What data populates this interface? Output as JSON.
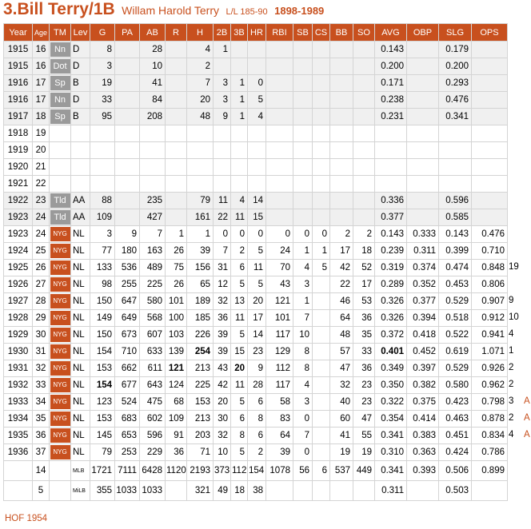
{
  "header": {
    "title": "3.Bill Terry/1B",
    "full_name": "Willam Harold Terry",
    "bats_throws_size": "L/L 185-90",
    "lifespan": "1898-1989"
  },
  "columns": [
    "Year",
    "Age",
    "TM",
    "Lev",
    "G",
    "PA",
    "AB",
    "R",
    "H",
    "2B",
    "3B",
    "HR",
    "RBI",
    "SB",
    "CS",
    "BB",
    "SO",
    "AVG",
    "OBP",
    "SLG",
    "OPS"
  ],
  "rows": [
    {
      "kind": "minor",
      "year": "1915",
      "age": "16",
      "tm": "Nn",
      "lev": "D",
      "g": "8",
      "pa": "",
      "ab": "28",
      "r": "",
      "h": "4",
      "d": "1",
      "t": "",
      "hr": "",
      "rbi": "",
      "sb": "",
      "cs": "",
      "bb": "",
      "so": "",
      "avg": "0.143",
      "obp": "",
      "slg": "0.179",
      "ops": ""
    },
    {
      "kind": "minor",
      "year": "1915",
      "age": "16",
      "tm": "Dot",
      "lev": "D",
      "g": "3",
      "pa": "",
      "ab": "10",
      "r": "",
      "h": "2",
      "d": "",
      "t": "",
      "hr": "",
      "rbi": "",
      "sb": "",
      "cs": "",
      "bb": "",
      "so": "",
      "avg": "0.200",
      "obp": "",
      "slg": "0.200",
      "ops": ""
    },
    {
      "kind": "minor",
      "year": "1916",
      "age": "17",
      "tm": "Sp",
      "lev": "B",
      "g": "19",
      "pa": "",
      "ab": "41",
      "r": "",
      "h": "7",
      "d": "3",
      "t": "1",
      "hr": "0",
      "rbi": "",
      "sb": "",
      "cs": "",
      "bb": "",
      "so": "",
      "avg": "0.171",
      "obp": "",
      "slg": "0.293",
      "ops": ""
    },
    {
      "kind": "minor",
      "year": "1916",
      "age": "17",
      "tm": "Nn",
      "lev": "D",
      "g": "33",
      "pa": "",
      "ab": "84",
      "r": "",
      "h": "20",
      "d": "3",
      "t": "1",
      "hr": "5",
      "rbi": "",
      "sb": "",
      "cs": "",
      "bb": "",
      "so": "",
      "avg": "0.238",
      "obp": "",
      "slg": "0.476",
      "ops": ""
    },
    {
      "kind": "minor",
      "year": "1917",
      "age": "18",
      "tm": "Sp",
      "lev": "B",
      "g": "95",
      "pa": "",
      "ab": "208",
      "r": "",
      "h": "48",
      "d": "9",
      "t": "1",
      "hr": "4",
      "rbi": "",
      "sb": "",
      "cs": "",
      "bb": "",
      "so": "",
      "avg": "0.231",
      "obp": "",
      "slg": "0.341",
      "ops": ""
    },
    {
      "kind": "empty",
      "year": "1918",
      "age": "19"
    },
    {
      "kind": "empty",
      "year": "1919",
      "age": "20"
    },
    {
      "kind": "empty",
      "year": "1920",
      "age": "21"
    },
    {
      "kind": "empty",
      "year": "1921",
      "age": "22"
    },
    {
      "kind": "minor",
      "year": "1922",
      "age": "23",
      "tm": "Tld",
      "lev": "AA",
      "g": "88",
      "pa": "",
      "ab": "235",
      "r": "",
      "h": "79",
      "d": "11",
      "t": "4",
      "hr": "14",
      "rbi": "",
      "sb": "",
      "cs": "",
      "bb": "",
      "so": "",
      "avg": "0.336",
      "obp": "",
      "slg": "0.596",
      "ops": ""
    },
    {
      "kind": "minor",
      "year": "1923",
      "age": "24",
      "tm": "Tld",
      "lev": "AA",
      "g": "109",
      "pa": "",
      "ab": "427",
      "r": "",
      "h": "161",
      "d": "22",
      "t": "11",
      "hr": "15",
      "rbi": "",
      "sb": "",
      "cs": "",
      "bb": "",
      "so": "",
      "avg": "0.377",
      "obp": "",
      "slg": "0.585",
      "ops": ""
    },
    {
      "kind": "major",
      "year": "1923",
      "age": "24",
      "tm": "NYG",
      "lev": "NL",
      "g": "3",
      "pa": "9",
      "ab": "7",
      "r": "1",
      "h": "1",
      "d": "0",
      "t": "0",
      "hr": "0",
      "rbi": "0",
      "sb": "0",
      "cs": "0",
      "bb": "2",
      "so": "2",
      "avg": "0.143",
      "obp": "0.333",
      "slg": "0.143",
      "ops": "0.476"
    },
    {
      "kind": "major",
      "year": "1924",
      "age": "25",
      "tm": "NYG",
      "lev": "NL",
      "g": "77",
      "pa": "180",
      "ab": "163",
      "r": "26",
      "h": "39",
      "d": "7",
      "t": "2",
      "hr": "5",
      "rbi": "24",
      "sb": "1",
      "cs": "1",
      "bb": "17",
      "so": "18",
      "avg": "0.239",
      "obp": "0.311",
      "slg": "0.399",
      "ops": "0.710"
    },
    {
      "kind": "major",
      "year": "1925",
      "age": "26",
      "tm": "NYG",
      "lev": "NL",
      "g": "133",
      "pa": "536",
      "ab": "489",
      "r": "75",
      "h": "156",
      "d": "31",
      "t": "6",
      "hr": "11",
      "rbi": "70",
      "sb": "4",
      "cs": "5",
      "bb": "42",
      "so": "52",
      "avg": "0.319",
      "obp": "0.374",
      "slg": "0.474",
      "ops": "0.848",
      "note": "19"
    },
    {
      "kind": "major",
      "year": "1926",
      "age": "27",
      "tm": "NYG",
      "lev": "NL",
      "g": "98",
      "pa": "255",
      "ab": "225",
      "r": "26",
      "h": "65",
      "d": "12",
      "t": "5",
      "hr": "5",
      "rbi": "43",
      "sb": "3",
      "cs": "",
      "bb": "22",
      "so": "17",
      "avg": "0.289",
      "obp": "0.352",
      "slg": "0.453",
      "ops": "0.806"
    },
    {
      "kind": "major",
      "year": "1927",
      "age": "28",
      "tm": "NYG",
      "lev": "NL",
      "g": "150",
      "pa": "647",
      "ab": "580",
      "r": "101",
      "h": "189",
      "d": "32",
      "t": "13",
      "hr": "20",
      "rbi": "121",
      "sb": "1",
      "cs": "",
      "bb": "46",
      "so": "53",
      "avg": "0.326",
      "obp": "0.377",
      "slg": "0.529",
      "ops": "0.907",
      "note": "9"
    },
    {
      "kind": "major",
      "year": "1928",
      "age": "29",
      "tm": "NYG",
      "lev": "NL",
      "g": "149",
      "pa": "649",
      "ab": "568",
      "r": "100",
      "h": "185",
      "d": "36",
      "t": "11",
      "hr": "17",
      "rbi": "101",
      "sb": "7",
      "cs": "",
      "bb": "64",
      "so": "36",
      "avg": "0.326",
      "obp": "0.394",
      "slg": "0.518",
      "ops": "0.912",
      "note": "10"
    },
    {
      "kind": "major",
      "year": "1929",
      "age": "30",
      "tm": "NYG",
      "lev": "NL",
      "g": "150",
      "pa": "673",
      "ab": "607",
      "r": "103",
      "h": "226",
      "d": "39",
      "t": "5",
      "hr": "14",
      "rbi": "117",
      "sb": "10",
      "cs": "",
      "bb": "48",
      "so": "35",
      "avg": "0.372",
      "obp": "0.418",
      "slg": "0.522",
      "ops": "0.941",
      "note": "4"
    },
    {
      "kind": "major",
      "year": "1930",
      "age": "31",
      "tm": "NYG",
      "lev": "NL",
      "g": "154",
      "pa": "710",
      "ab": "633",
      "r": "139",
      "h": "254",
      "d": "39",
      "t": "15",
      "hr": "23",
      "rbi": "129",
      "sb": "8",
      "cs": "",
      "bb": "57",
      "so": "33",
      "avg": "0.401",
      "obp": "0.452",
      "slg": "0.619",
      "ops": "1.071",
      "note": "1",
      "bold": [
        "h",
        "avg"
      ]
    },
    {
      "kind": "major",
      "year": "1931",
      "age": "32",
      "tm": "NYG",
      "lev": "NL",
      "g": "153",
      "pa": "662",
      "ab": "611",
      "r": "121",
      "h": "213",
      "d": "43",
      "t": "20",
      "hr": "9",
      "rbi": "112",
      "sb": "8",
      "cs": "",
      "bb": "47",
      "so": "36",
      "avg": "0.349",
      "obp": "0.397",
      "slg": "0.529",
      "ops": "0.926",
      "note": "2",
      "bold": [
        "r",
        "t"
      ]
    },
    {
      "kind": "major",
      "year": "1932",
      "age": "33",
      "tm": "NYG",
      "lev": "NL",
      "g": "154",
      "pa": "677",
      "ab": "643",
      "r": "124",
      "h": "225",
      "d": "42",
      "t": "11",
      "hr": "28",
      "rbi": "117",
      "sb": "4",
      "cs": "",
      "bb": "32",
      "so": "23",
      "avg": "0.350",
      "obp": "0.382",
      "slg": "0.580",
      "ops": "0.962",
      "note": "2",
      "bold": [
        "g"
      ]
    },
    {
      "kind": "major",
      "year": "1933",
      "age": "34",
      "tm": "NYG",
      "lev": "NL",
      "g": "123",
      "pa": "524",
      "ab": "475",
      "r": "68",
      "h": "153",
      "d": "20",
      "t": "5",
      "hr": "6",
      "rbi": "58",
      "sb": "3",
      "cs": "",
      "bb": "40",
      "so": "23",
      "avg": "0.322",
      "obp": "0.375",
      "slg": "0.423",
      "ops": "0.798",
      "note": "3",
      "award": "A"
    },
    {
      "kind": "major",
      "year": "1934",
      "age": "35",
      "tm": "NYG",
      "lev": "NL",
      "g": "153",
      "pa": "683",
      "ab": "602",
      "r": "109",
      "h": "213",
      "d": "30",
      "t": "6",
      "hr": "8",
      "rbi": "83",
      "sb": "0",
      "cs": "",
      "bb": "60",
      "so": "47",
      "avg": "0.354",
      "obp": "0.414",
      "slg": "0.463",
      "ops": "0.878",
      "note": "2",
      "award": "A"
    },
    {
      "kind": "major",
      "year": "1935",
      "age": "36",
      "tm": "NYG",
      "lev": "NL",
      "g": "145",
      "pa": "653",
      "ab": "596",
      "r": "91",
      "h": "203",
      "d": "32",
      "t": "8",
      "hr": "6",
      "rbi": "64",
      "sb": "7",
      "cs": "",
      "bb": "41",
      "so": "55",
      "avg": "0.341",
      "obp": "0.383",
      "slg": "0.451",
      "ops": "0.834",
      "note": "4",
      "award": "A"
    },
    {
      "kind": "major",
      "year": "1936",
      "age": "37",
      "tm": "NYG",
      "lev": "NL",
      "g": "79",
      "pa": "253",
      "ab": "229",
      "r": "36",
      "h": "71",
      "d": "10",
      "t": "5",
      "hr": "2",
      "rbi": "39",
      "sb": "0",
      "cs": "",
      "bb": "19",
      "so": "19",
      "avg": "0.310",
      "obp": "0.363",
      "slg": "0.424",
      "ops": "0.786"
    }
  ],
  "totals": [
    {
      "year": "",
      "age": "14",
      "tm": "",
      "lev": "MLB",
      "g": "1721",
      "pa": "7111",
      "ab": "6428",
      "r": "1120",
      "h": "2193",
      "d": "373",
      "t": "112",
      "hr": "154",
      "rbi": "1078",
      "sb": "56",
      "cs": "6",
      "bb": "537",
      "so": "449",
      "avg": "0.341",
      "obp": "0.393",
      "slg": "0.506",
      "ops": "0.899"
    },
    {
      "year": "",
      "age": "5",
      "tm": "",
      "lev": "MiLB",
      "g": "355",
      "pa": "1033",
      "ab": "1033",
      "r": "",
      "h": "321",
      "d": "49",
      "t": "18",
      "hr": "38",
      "rbi": "",
      "sb": "",
      "cs": "",
      "bb": "",
      "so": "",
      "avg": "0.311",
      "obp": "",
      "slg": "0.503",
      "ops": ""
    }
  ],
  "footer": "HOF 1954",
  "colors": {
    "accent": "#c8501e",
    "minor_badge": "#9a9a9a",
    "minor_row": "#f0f0f0",
    "grid": "#d4d4d4"
  }
}
